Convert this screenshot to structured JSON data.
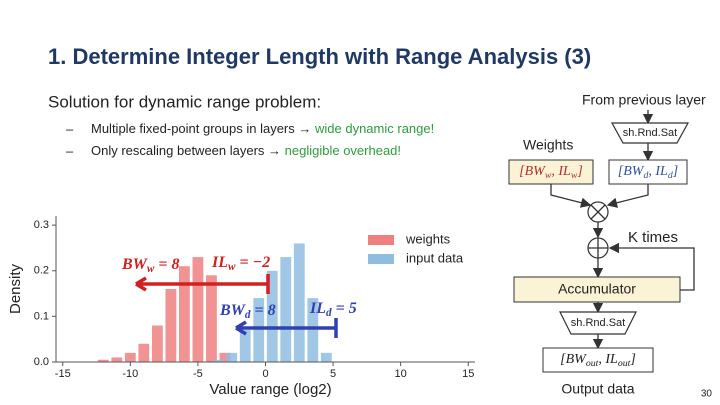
{
  "title": "1. Determine Integer Length with Range Analysis (3)",
  "subtitle": "Solution for dynamic range problem:",
  "bullets": [
    {
      "marker": "–",
      "text": "Multiple fixed-point groups in layers → ",
      "highlight": "wide dynamic range!"
    },
    {
      "marker": "–",
      "text": "Only rescaling between layers → ",
      "highlight": "negligible overhead!"
    }
  ],
  "chart_data": {
    "type": "histogram",
    "xlabel": "Value range (log2)",
    "ylabel": "Density",
    "xlim": [
      -15.5,
      15.5
    ],
    "ylim": [
      0,
      0.32
    ],
    "xticks": [
      -15,
      -10,
      -5,
      0,
      5,
      10,
      15
    ],
    "yticks": [
      {
        "value": 0,
        "label": "0.0"
      },
      0.1,
      0.2,
      0.3
    ],
    "legend": "upper right",
    "series": [
      {
        "name": "weights",
        "color": "#f08080",
        "bins": [
          -12.5,
          -11.5,
          -10.5,
          -9.5,
          -8.5,
          -7.5,
          -6.5,
          -5.5,
          -4.5,
          -3.5,
          -2.5
        ],
        "values": [
          0.005,
          0.01,
          0.02,
          0.04,
          0.08,
          0.16,
          0.21,
          0.23,
          0.19,
          0.02
        ]
      },
      {
        "name": "input data",
        "color": "#8fbde0",
        "bins": [
          -4,
          -3,
          -2,
          -1,
          0,
          1,
          2,
          3,
          4,
          5
        ],
        "values": [
          0.005,
          0.02,
          0.07,
          0.14,
          0.2,
          0.23,
          0.26,
          0.14,
          0.02
        ]
      }
    ],
    "annotations": [
      {
        "parts": [
          "BW",
          "w",
          " = 8"
        ]
      },
      {
        "parts": [
          "IL",
          "w",
          " = −2"
        ]
      },
      {
        "parts": [
          "BW",
          "d",
          " = 8"
        ]
      },
      {
        "parts": [
          "IL",
          "d",
          " = 5"
        ]
      }
    ]
  },
  "diagram": {
    "from_previous": "From previous layer",
    "weights": "Weights",
    "shrnd_top": "sh.Rnd.Sat",
    "weight_format": {
      "parts": [
        "[BW",
        "w",
        ", IL",
        "w",
        "]"
      ]
    },
    "data_format": {
      "parts": [
        "[BW",
        "d",
        ", IL",
        "d",
        "]"
      ]
    },
    "k_times": "K times",
    "accumulator": "Accumulator",
    "shrnd_bottom": "sh.Rnd.Sat",
    "out_format": {
      "parts": [
        "[BW",
        "out",
        ", IL",
        "out",
        "]"
      ]
    },
    "output": "Output data"
  },
  "page_number": "30"
}
